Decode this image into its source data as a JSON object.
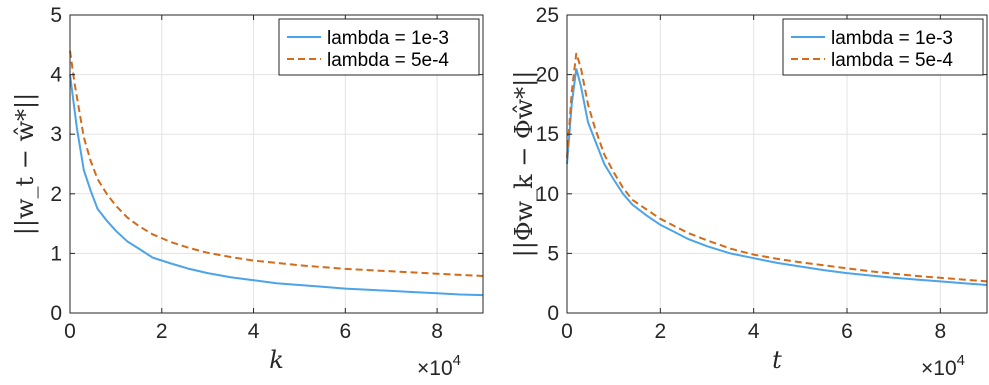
{
  "chart_data": [
    {
      "type": "line",
      "xlabel": "k",
      "ylabel": "||w_t − ŵ*||",
      "x_multiplier": {
        "base": "×10",
        "exp": "4"
      },
      "xlim": [
        0,
        9
      ],
      "ylim": [
        0,
        5
      ],
      "xticks": [
        0,
        2,
        4,
        6,
        8
      ],
      "yticks": [
        0,
        1,
        2,
        3,
        4,
        5
      ],
      "grid": true,
      "legend_position": "top-right",
      "series": [
        {
          "name": "lambda = 1e-3",
          "color": "#4DA3E8",
          "style": "solid",
          "x": [
            0,
            0.15,
            0.3,
            0.45,
            0.6,
            0.8,
            1.0,
            1.25,
            1.5,
            1.8,
            2.2,
            2.6,
            3.0,
            3.5,
            4.0,
            4.5,
            5.0,
            5.5,
            6.0,
            6.5,
            7.0,
            7.5,
            8.0,
            8.5,
            9.0
          ],
          "values": [
            4.0,
            3.1,
            2.4,
            2.05,
            1.75,
            1.55,
            1.38,
            1.2,
            1.08,
            0.93,
            0.83,
            0.74,
            0.67,
            0.6,
            0.55,
            0.5,
            0.47,
            0.44,
            0.41,
            0.39,
            0.37,
            0.35,
            0.33,
            0.31,
            0.3
          ]
        },
        {
          "name": "lambda = 5e-4",
          "color": "#D26B1A",
          "style": "dashed",
          "x": [
            0,
            0.1,
            0.2,
            0.3,
            0.45,
            0.6,
            0.8,
            1.0,
            1.25,
            1.5,
            1.8,
            2.2,
            2.6,
            3.0,
            3.5,
            4.0,
            4.5,
            5.0,
            5.5,
            6.0,
            6.5,
            7.0,
            7.5,
            8.0,
            8.5,
            9.0
          ],
          "values": [
            4.4,
            3.85,
            3.4,
            2.95,
            2.55,
            2.25,
            2.0,
            1.8,
            1.6,
            1.46,
            1.32,
            1.19,
            1.09,
            1.01,
            0.94,
            0.88,
            0.84,
            0.8,
            0.77,
            0.74,
            0.72,
            0.7,
            0.68,
            0.66,
            0.64,
            0.62
          ]
        }
      ]
    },
    {
      "type": "line",
      "xlabel": "t",
      "ylabel": "||Φw_k − Φŵ*||",
      "x_multiplier": {
        "base": "×10",
        "exp": "4"
      },
      "xlim": [
        0,
        9
      ],
      "ylim": [
        0,
        25
      ],
      "xticks": [
        0,
        2,
        4,
        6,
        8
      ],
      "yticks": [
        0,
        5,
        10,
        15,
        20,
        25
      ],
      "grid": true,
      "legend_position": "top-right",
      "series": [
        {
          "name": "lambda = 1e-3",
          "color": "#4DA3E8",
          "style": "solid",
          "x": [
            0,
            0.1,
            0.2,
            0.3,
            0.45,
            0.6,
            0.8,
            1.0,
            1.2,
            1.4,
            1.7,
            2.0,
            2.3,
            2.6,
            3.0,
            3.5,
            4.0,
            4.5,
            5.0,
            5.5,
            6.0,
            6.5,
            7.0,
            7.5,
            8.0,
            8.5,
            9.0
          ],
          "values": [
            12.5,
            17.5,
            20.5,
            19.0,
            16.0,
            14.5,
            12.5,
            11.2,
            10.0,
            9.1,
            8.2,
            7.4,
            6.8,
            6.2,
            5.6,
            5.0,
            4.6,
            4.2,
            3.9,
            3.6,
            3.35,
            3.15,
            2.95,
            2.8,
            2.65,
            2.5,
            2.35
          ]
        },
        {
          "name": "lambda = 5e-4",
          "color": "#D26B1A",
          "style": "dashed",
          "x": [
            0,
            0.1,
            0.2,
            0.3,
            0.45,
            0.6,
            0.8,
            1.0,
            1.2,
            1.4,
            1.7,
            2.0,
            2.3,
            2.6,
            3.0,
            3.5,
            4.0,
            4.5,
            5.0,
            5.5,
            6.0,
            6.5,
            7.0,
            7.5,
            8.0,
            8.5,
            9.0
          ],
          "values": [
            13.0,
            18.5,
            21.8,
            20.5,
            17.5,
            15.5,
            13.3,
            11.8,
            10.5,
            9.5,
            8.7,
            7.9,
            7.3,
            6.7,
            6.1,
            5.4,
            4.9,
            4.55,
            4.25,
            4.0,
            3.75,
            3.5,
            3.3,
            3.1,
            2.95,
            2.8,
            2.65
          ]
        }
      ]
    }
  ]
}
